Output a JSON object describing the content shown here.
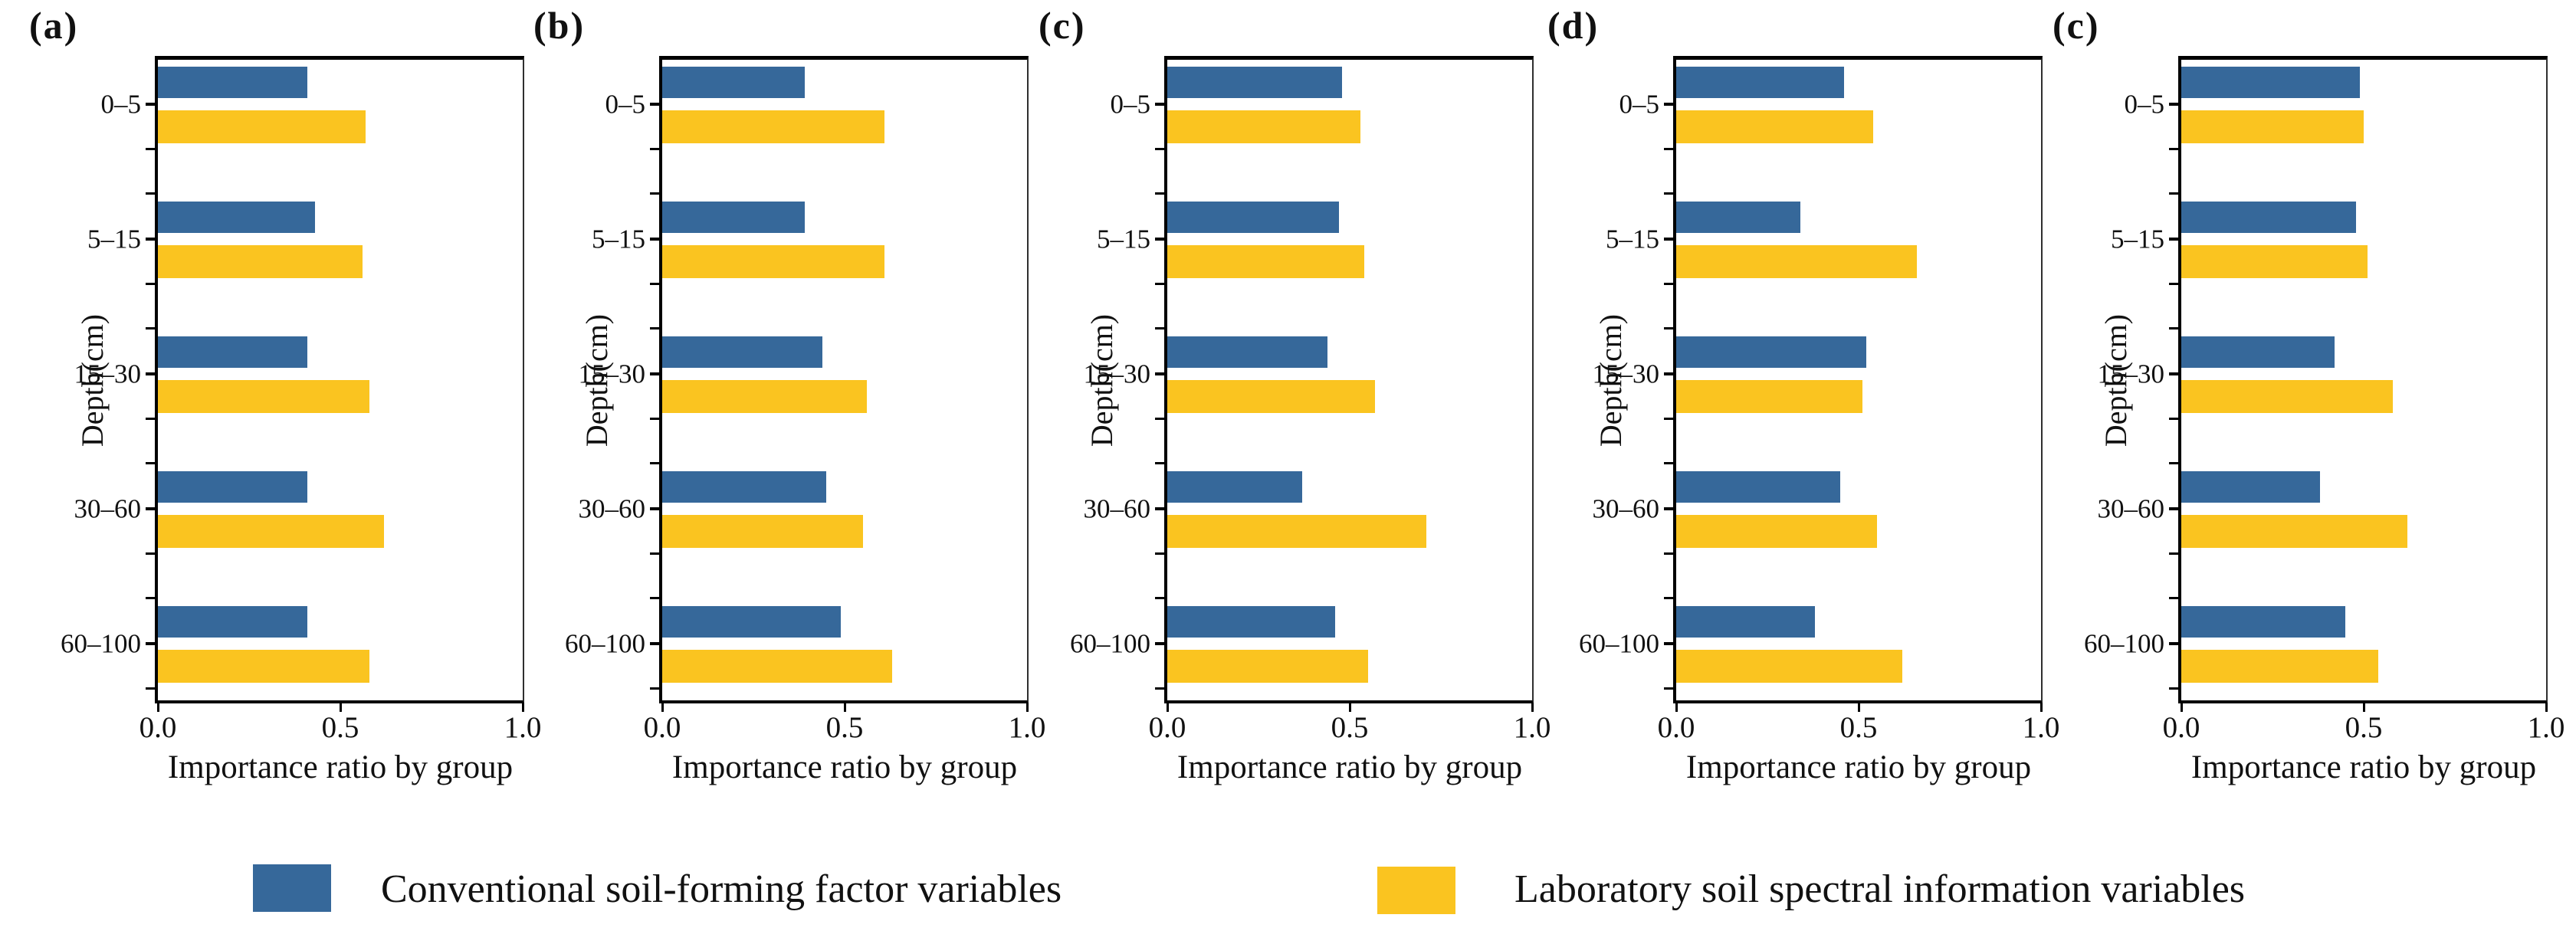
{
  "figure": {
    "background": "#ffffff"
  },
  "colors": {
    "series1_blue": "#36689A",
    "series2_yellow": "#FAC420",
    "axis": "#000000",
    "text": "#111111"
  },
  "legend": {
    "items": [
      {
        "label": "Conventional soil-forming factor variables",
        "color_key": "series1_blue"
      },
      {
        "label": "Laboratory soil spectral information variables",
        "color_key": "series2_yellow"
      }
    ]
  },
  "chart_data": [
    {
      "type": "bar",
      "orientation": "horizontal",
      "panel_label": "(a)",
      "categories": [
        "0–5",
        "5–15",
        "15–30",
        "30–60",
        "60–100"
      ],
      "series": [
        {
          "name": "Conventional soil-forming factor variables",
          "values": [
            0.41,
            0.43,
            0.41,
            0.41,
            0.41
          ]
        },
        {
          "name": "Laboratory soil spectral information variables",
          "values": [
            0.57,
            0.56,
            0.58,
            0.62,
            0.58
          ]
        }
      ],
      "xlabel": "Importance ratio by group",
      "ylabel": "Depth(cm)",
      "xlim": [
        0,
        1
      ],
      "xticks": [
        {
          "label": "0.0",
          "value": 0.0
        },
        {
          "label": "0.5",
          "value": 0.5
        },
        {
          "label": "1.0",
          "value": 1.0
        }
      ],
      "grid": false
    },
    {
      "type": "bar",
      "orientation": "horizontal",
      "panel_label": "(b)",
      "categories": [
        "0–5",
        "5–15",
        "15–30",
        "30–60",
        "60–100"
      ],
      "series": [
        {
          "name": "Conventional soil-forming factor variables",
          "values": [
            0.39,
            0.39,
            0.44,
            0.45,
            0.49
          ]
        },
        {
          "name": "Laboratory soil spectral information variables",
          "values": [
            0.61,
            0.61,
            0.56,
            0.55,
            0.63
          ]
        }
      ],
      "xlabel": "Importance ratio by group",
      "ylabel": "Depth(cm)",
      "xlim": [
        0,
        1
      ],
      "xticks": [
        {
          "label": "0.0",
          "value": 0.0
        },
        {
          "label": "0.5",
          "value": 0.5
        },
        {
          "label": "1.0",
          "value": 1.0
        }
      ],
      "grid": false
    },
    {
      "type": "bar",
      "orientation": "horizontal",
      "panel_label": "(c)",
      "categories": [
        "0–5",
        "5–15",
        "15–30",
        "30–60",
        "60–100"
      ],
      "series": [
        {
          "name": "Conventional soil-forming factor variables",
          "values": [
            0.48,
            0.47,
            0.44,
            0.37,
            0.46
          ]
        },
        {
          "name": "Laboratory soil spectral information variables",
          "values": [
            0.53,
            0.54,
            0.57,
            0.71,
            0.55
          ]
        }
      ],
      "xlabel": "Importance ratio by group",
      "ylabel": "Depth(cm)",
      "xlim": [
        0,
        1
      ],
      "xticks": [
        {
          "label": "0.0",
          "value": 0.0
        },
        {
          "label": "0.5",
          "value": 0.5
        },
        {
          "label": "1.0",
          "value": 1.0
        }
      ],
      "grid": false
    },
    {
      "type": "bar",
      "orientation": "horizontal",
      "panel_label": "(d)",
      "categories": [
        "0–5",
        "5–15",
        "15–30",
        "30–60",
        "60–100"
      ],
      "series": [
        {
          "name": "Conventional soil-forming factor variables",
          "values": [
            0.46,
            0.34,
            0.52,
            0.45,
            0.38
          ]
        },
        {
          "name": "Laboratory soil spectral information variables",
          "values": [
            0.54,
            0.66,
            0.51,
            0.55,
            0.62
          ]
        }
      ],
      "xlabel": "Importance ratio by group",
      "ylabel": "Depth(cm)",
      "xlim": [
        0,
        1
      ],
      "xticks": [
        {
          "label": "0.0",
          "value": 0.0
        },
        {
          "label": "0.5",
          "value": 0.5
        },
        {
          "label": "1.0",
          "value": 1.0
        }
      ],
      "grid": false
    },
    {
      "type": "bar",
      "orientation": "horizontal",
      "panel_label": "(c)",
      "categories": [
        "0–5",
        "5–15",
        "15–30",
        "30–60",
        "60–100"
      ],
      "series": [
        {
          "name": "Conventional soil-forming factor variables",
          "values": [
            0.49,
            0.48,
            0.42,
            0.38,
            0.45
          ]
        },
        {
          "name": "Laboratory soil spectral information variables",
          "values": [
            0.5,
            0.51,
            0.58,
            0.62,
            0.54
          ]
        }
      ],
      "xlabel": "Importance ratio by group",
      "ylabel": "Depth(cm)",
      "xlim": [
        0,
        1
      ],
      "xticks": [
        {
          "label": "0.0",
          "value": 0.0
        },
        {
          "label": "0.5",
          "value": 0.5
        },
        {
          "label": "1.0",
          "value": 1.0
        }
      ],
      "grid": false
    }
  ]
}
